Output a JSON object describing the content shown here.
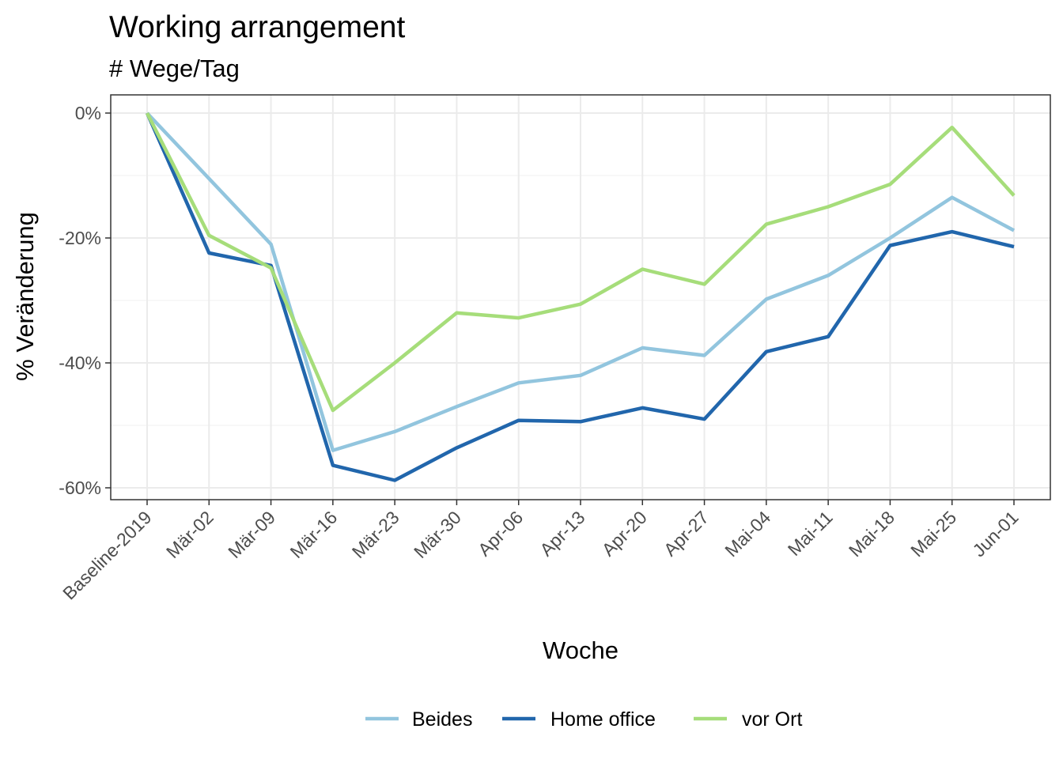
{
  "chart_data": {
    "type": "line",
    "title": "Working arrangement",
    "subtitle": "# Wege/Tag",
    "xlabel": "Woche",
    "ylabel": "% Veränderung",
    "categories": [
      "Baseline-2019",
      "Mär-02",
      "Mär-09",
      "Mär-16",
      "Mär-23",
      "Mär-30",
      "Apr-06",
      "Apr-13",
      "Apr-20",
      "Apr-27",
      "Mai-04",
      "Mai-11",
      "Mai-18",
      "Mai-25",
      "Jun-01"
    ],
    "y_ticks": [
      0,
      -20,
      -40,
      -60
    ],
    "y_tick_labels": [
      "0%",
      "-20%",
      "-40%",
      "-60%"
    ],
    "ylim": [
      -61.5,
      3
    ],
    "grid": true,
    "legend_position": "bottom",
    "series": [
      {
        "name": "Beides",
        "color": "#92c5de",
        "values": [
          0,
          -10.5,
          -21,
          -54,
          -51,
          -47,
          -43.2,
          -42,
          -37.6,
          -38.8,
          -29.8,
          -26,
          -20,
          -13.5,
          -18.8
        ]
      },
      {
        "name": "Home office",
        "color": "#2166ac",
        "values": [
          0,
          -22.4,
          -24.4,
          -56.4,
          -58.8,
          -53.6,
          -49.2,
          -49.4,
          -47.2,
          -49,
          -38.2,
          -35.8,
          -21.2,
          -19,
          -21.4
        ]
      },
      {
        "name": "vor Ort",
        "color": "#a6dd7a",
        "values": [
          0,
          -19.6,
          -24.8,
          -47.6,
          -40,
          -32,
          -32.8,
          -30.6,
          -25,
          -27.4,
          -17.8,
          -15,
          -11.4,
          -2.3,
          -13.2
        ]
      }
    ]
  }
}
